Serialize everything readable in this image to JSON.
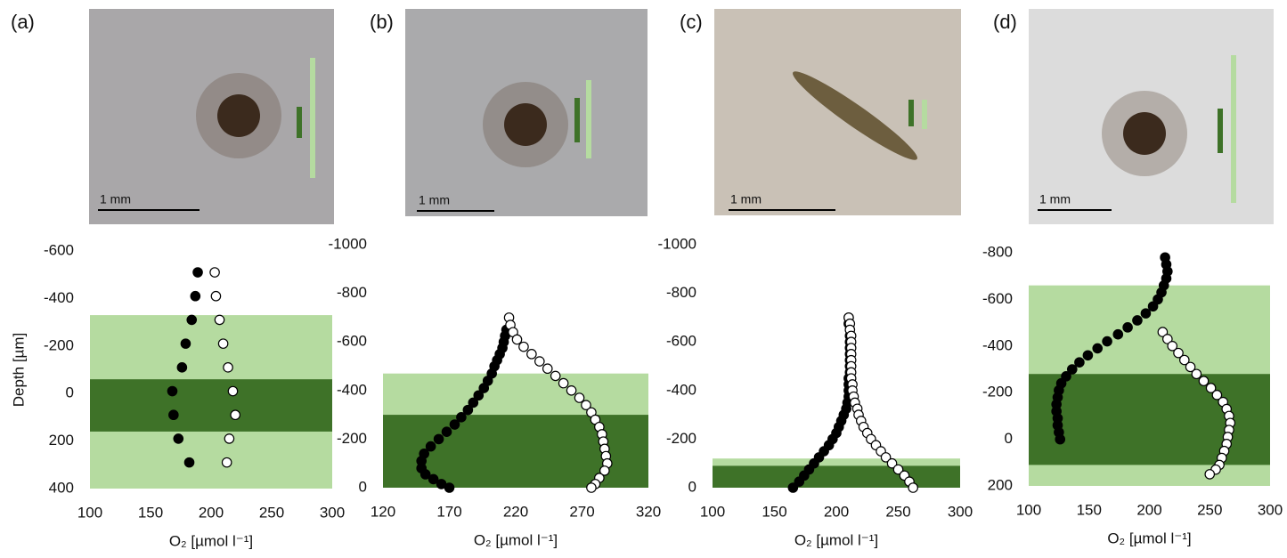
{
  "chart_data": [
    {
      "type": "scatter",
      "panel_label": "(a)",
      "scale_bar_label": "1 mm",
      "ylabel": "Depth [µm]",
      "xlabel": "O₂ [µmol l⁻¹]",
      "xlim": [
        100,
        300
      ],
      "xticks": [
        100,
        150,
        200,
        250,
        300
      ],
      "ylim": [
        -600,
        400
      ],
      "yticks": [
        -600,
        -400,
        -200,
        0,
        200,
        400
      ],
      "y_inverted": true,
      "bands": [
        {
          "from": -330,
          "to": 400,
          "color": "#b5dba0"
        },
        {
          "from": -60,
          "to": 160,
          "color": "#3e7228"
        }
      ],
      "series": [
        {
          "color": "#000000",
          "x": [
            189,
            187,
            184,
            179,
            176,
            168,
            169,
            173,
            182
          ],
          "values": [
            -510,
            -410,
            -310,
            -210,
            -110,
            -10,
            90,
            190,
            290
          ]
        },
        {
          "color": "#ffffff",
          "x": [
            203,
            204,
            207,
            210,
            214,
            218,
            220,
            215,
            213
          ],
          "values": [
            -510,
            -410,
            -310,
            -210,
            -110,
            -10,
            90,
            190,
            290
          ]
        }
      ]
    },
    {
      "type": "scatter",
      "panel_label": "(b)",
      "scale_bar_label": "1 mm",
      "xlabel": "O₂ [µmol l⁻¹]",
      "xlim": [
        120,
        320
      ],
      "xticks": [
        120,
        170,
        220,
        270,
        320
      ],
      "ylim": [
        -1000,
        0
      ],
      "yticks": [
        -1000,
        -800,
        -600,
        -400,
        -200,
        0
      ],
      "y_inverted": true,
      "bands": [
        {
          "from": -470,
          "to": 0,
          "color": "#b5dba0"
        },
        {
          "from": -300,
          "to": 0,
          "color": "#3e7228"
        }
      ],
      "series": [
        {
          "color": "#000000",
          "x": [
            213,
            212,
            211,
            210,
            208,
            206,
            204,
            202,
            199,
            196,
            192,
            188,
            184,
            179,
            174,
            168,
            162,
            156,
            151,
            149,
            149,
            152,
            158,
            164,
            170
          ],
          "values": [
            -650,
            -625,
            -600,
            -575,
            -550,
            -525,
            -500,
            -470,
            -440,
            -410,
            -380,
            -350,
            -320,
            -290,
            -260,
            -230,
            -200,
            -170,
            -140,
            -110,
            -80,
            -55,
            -35,
            -15,
            0
          ]
        },
        {
          "color": "#ffffff",
          "x": [
            215,
            216,
            218,
            221,
            226,
            232,
            238,
            244,
            250,
            256,
            262,
            268,
            273,
            277,
            280,
            283,
            285,
            286,
            287,
            288,
            289,
            287,
            283,
            280,
            277
          ],
          "values": [
            -700,
            -670,
            -640,
            -610,
            -580,
            -550,
            -520,
            -490,
            -460,
            -430,
            -400,
            -370,
            -340,
            -310,
            -280,
            -250,
            -220,
            -190,
            -160,
            -130,
            -100,
            -70,
            -40,
            -15,
            0
          ]
        }
      ]
    },
    {
      "type": "scatter",
      "panel_label": "(c)",
      "scale_bar_label": "1 mm",
      "xlabel": "O₂ [µmol l⁻¹]",
      "xlim": [
        100,
        300
      ],
      "xticks": [
        100,
        150,
        200,
        250,
        300
      ],
      "ylim": [
        -1000,
        0
      ],
      "yticks": [
        -1000,
        -800,
        -600,
        -400,
        -200,
        0
      ],
      "y_inverted": true,
      "bands": [
        {
          "from": -120,
          "to": 0,
          "color": "#b5dba0"
        },
        {
          "from": -90,
          "to": 0,
          "color": "#3e7228"
        }
      ],
      "series": [
        {
          "color": "#000000",
          "x": [
            210,
            210,
            211,
            211,
            211,
            211,
            211,
            211,
            211,
            211,
            210,
            210,
            210,
            210,
            209,
            208,
            206,
            204,
            202,
            200,
            197,
            194,
            190,
            186,
            182,
            178,
            174,
            170,
            165
          ],
          "values": [
            -700,
            -675,
            -650,
            -625,
            -600,
            -575,
            -550,
            -525,
            -500,
            -475,
            -450,
            -425,
            -400,
            -375,
            -350,
            -325,
            -300,
            -275,
            -250,
            -225,
            -200,
            -175,
            -150,
            -125,
            -100,
            -75,
            -50,
            -25,
            0
          ]
        },
        {
          "color": "#ffffff",
          "x": [
            210,
            211,
            211,
            212,
            212,
            212,
            212,
            212,
            212,
            212,
            212,
            213,
            213,
            214,
            215,
            217,
            218,
            220,
            222,
            225,
            228,
            232,
            236,
            240,
            245,
            250,
            255,
            259,
            262
          ],
          "values": [
            -700,
            -675,
            -650,
            -625,
            -600,
            -575,
            -550,
            -525,
            -500,
            -475,
            -450,
            -425,
            -400,
            -375,
            -350,
            -325,
            -300,
            -275,
            -250,
            -225,
            -200,
            -175,
            -150,
            -125,
            -100,
            -75,
            -50,
            -25,
            0
          ]
        }
      ]
    },
    {
      "type": "scatter",
      "panel_label": "(d)",
      "scale_bar_label": "1 mm",
      "xlabel": "O₂ [µmol l⁻¹]",
      "xlim": [
        100,
        300
      ],
      "xticks": [
        100,
        150,
        200,
        250,
        300
      ],
      "ylim": [
        -800,
        200
      ],
      "yticks": [
        -800,
        -600,
        -400,
        -200,
        0,
        200
      ],
      "y_inverted": true,
      "bands": [
        {
          "from": -660,
          "to": 200,
          "color": "#b5dba0"
        },
        {
          "from": -280,
          "to": 110,
          "color": "#3e7228"
        }
      ],
      "series": [
        {
          "color": "#000000",
          "x": [
            213,
            214,
            215,
            214,
            212,
            210,
            207,
            203,
            197,
            190,
            182,
            174,
            165,
            157,
            149,
            142,
            136,
            131,
            127,
            125,
            124,
            123,
            123,
            124,
            124,
            125,
            126
          ],
          "values": [
            -780,
            -750,
            -720,
            -690,
            -660,
            -630,
            -600,
            -570,
            -540,
            -510,
            -480,
            -450,
            -420,
            -390,
            -360,
            -330,
            -300,
            -270,
            -240,
            -210,
            -180,
            -150,
            -120,
            -90,
            -60,
            -30,
            0
          ]
        },
        {
          "color": "#ffffff",
          "x": [
            211,
            215,
            219,
            224,
            229,
            234,
            239,
            245,
            251,
            256,
            261,
            264,
            266,
            267,
            266,
            265,
            264,
            262,
            260,
            258,
            255,
            250
          ],
          "values": [
            -460,
            -430,
            -400,
            -370,
            -340,
            -310,
            -280,
            -250,
            -220,
            -190,
            -160,
            -130,
            -100,
            -70,
            -40,
            -10,
            20,
            50,
            80,
            110,
            130,
            150
          ]
        }
      ]
    }
  ]
}
